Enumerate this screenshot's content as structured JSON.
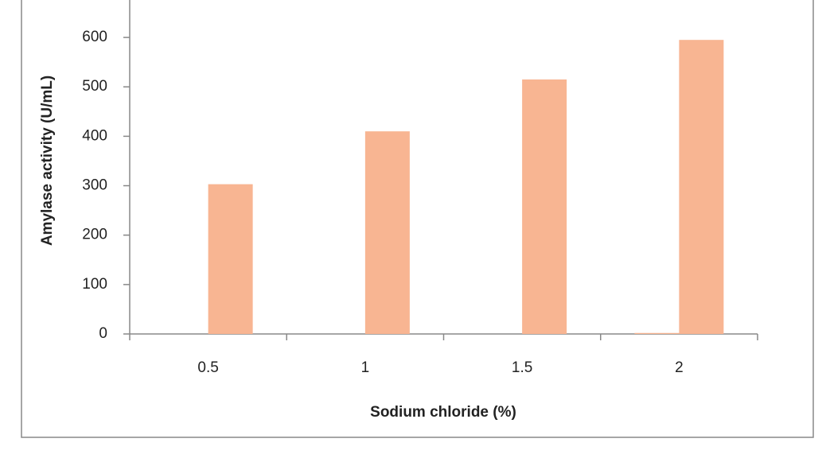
{
  "chart_data": {
    "type": "bar",
    "x_label": "Sodium chloride (%)",
    "y_label": "Amylase activity (U/mL)",
    "categories": [
      "0.5",
      "1",
      "1.5",
      "2"
    ],
    "series": [
      {
        "color": "#f8b592",
        "values": [
          0,
          0,
          0,
          2
        ]
      },
      {
        "color": "#f8b592",
        "values": [
          303,
          410,
          515,
          595
        ]
      }
    ],
    "ylim": [
      0,
      650
    ],
    "yticks": [
      0,
      100,
      200,
      300,
      400,
      500,
      600
    ]
  }
}
